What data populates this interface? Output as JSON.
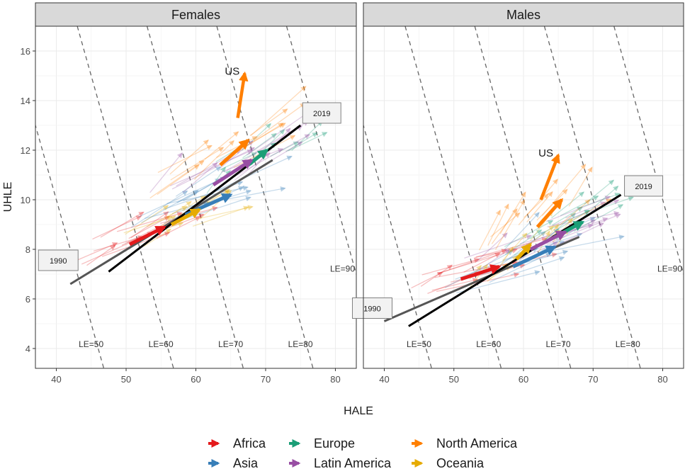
{
  "chart_data": {
    "type": "faceted-arrow-scatter",
    "xlabel": "HALE",
    "ylabel": "UHLE",
    "xlim": [
      37,
      83
    ],
    "ylim": [
      3.2,
      17
    ],
    "x_ticks": [
      40,
      50,
      60,
      70,
      80
    ],
    "y_ticks": [
      4,
      6,
      8,
      10,
      12,
      14,
      16
    ],
    "grid": true,
    "legend": {
      "placement": "bottom",
      "entries": [
        {
          "label": "Africa",
          "color": "#e41a1c"
        },
        {
          "label": "Asia",
          "color": "#377eb8"
        },
        {
          "label": "Europe",
          "color": "#1b9e77"
        },
        {
          "label": "Latin America",
          "color": "#984ea3"
        },
        {
          "label": "North America",
          "color": "#ff7f00"
        },
        {
          "label": "Oceania",
          "color": "#e6ab02"
        }
      ]
    },
    "le_contours": [
      {
        "label": "LE=50",
        "le": 50
      },
      {
        "label": "LE=60",
        "le": 60
      },
      {
        "label": "LE=70",
        "le": 70
      },
      {
        "label": "LE=80",
        "le": 80
      },
      {
        "label": "LE=90",
        "le": 90
      }
    ],
    "panels": [
      {
        "title": "Females",
        "fit_1990": {
          "label": "1990",
          "from": [
            42,
            6.6
          ],
          "to": [
            71,
            11.6
          ]
        },
        "fit_2019": {
          "label": "2019",
          "from": [
            47.5,
            7.1
          ],
          "to": [
            75,
            13.0
          ]
        },
        "regions": [
          {
            "region": "Africa",
            "from": [
              50.5,
              8.2
            ],
            "to": [
              55.5,
              8.9
            ]
          },
          {
            "region": "Asia",
            "from": [
              58.5,
              9.4
            ],
            "to": [
              65,
              10.2
            ]
          },
          {
            "region": "Europe",
            "from": [
              67.5,
              11.4
            ],
            "to": [
              70.2,
              12.0
            ]
          },
          {
            "region": "Latin America",
            "from": [
              62.5,
              10.6
            ],
            "to": [
              68,
              11.6
            ]
          },
          {
            "region": "North America",
            "from": [
              63.5,
              11.4
            ],
            "to": [
              67.5,
              12.4
            ]
          },
          {
            "region": "Oceania",
            "from": [
              56.5,
              9.0
            ],
            "to": [
              60.5,
              9.6
            ]
          }
        ],
        "us": {
          "label": "US",
          "from": [
            66,
            13.3
          ],
          "to": [
            67,
            15.1
          ]
        }
      },
      {
        "title": "Males",
        "fit_1990": {
          "label": "1990",
          "from": [
            40,
            5.1
          ],
          "to": [
            68,
            8.5
          ]
        },
        "fit_2019": {
          "label": "2019",
          "from": [
            43.5,
            4.9
          ],
          "to": [
            74,
            10.2
          ]
        },
        "regions": [
          {
            "region": "Africa",
            "from": [
              51,
              6.8
            ],
            "to": [
              56.5,
              7.3
            ]
          },
          {
            "region": "Asia",
            "from": [
              58.5,
              7.3
            ],
            "to": [
              64.5,
              8.1
            ]
          },
          {
            "region": "Europe",
            "from": [
              64.5,
              8.5
            ],
            "to": [
              68.5,
              9.1
            ]
          },
          {
            "region": "Latin America",
            "from": [
              61,
              8.0
            ],
            "to": [
              66,
              8.7
            ]
          },
          {
            "region": "North America",
            "from": [
              62,
              8.9
            ],
            "to": [
              65.5,
              10.0
            ]
          },
          {
            "region": "Oceania",
            "from": [
              59,
              7.6
            ],
            "to": [
              61,
              8.2
            ]
          }
        ],
        "us": {
          "label": "US",
          "from": [
            62.5,
            10.0
          ],
          "to": [
            65,
            11.8
          ]
        }
      }
    ]
  }
}
